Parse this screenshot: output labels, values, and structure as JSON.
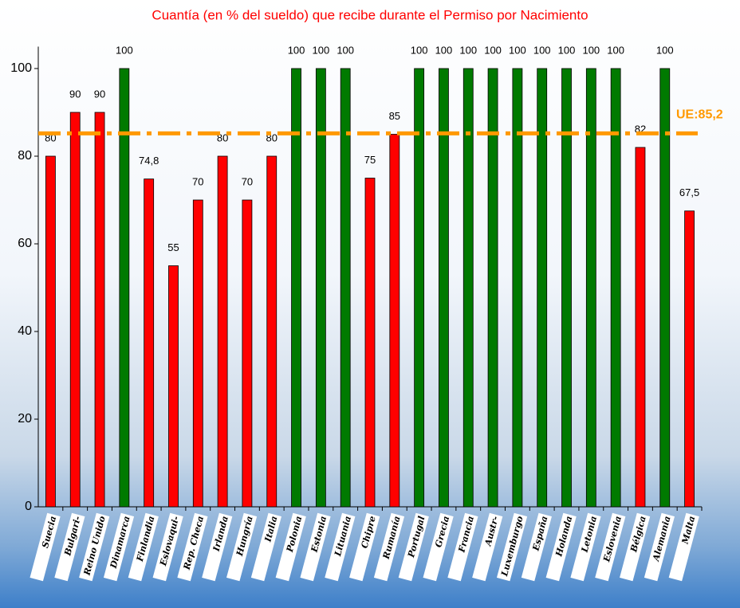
{
  "chart_data": {
    "type": "bar",
    "title": "Cuantía (en % del sueldo) que recibe durante el Permiso por Nacimiento",
    "categories": [
      "Suecia",
      "Bulgari-",
      "Reino Unido",
      "Dinamarca",
      "Finlandia",
      "Eslovaqui-",
      "Rep. Checa",
      "Irlanda",
      "Hungría",
      "Italia",
      "Polonia",
      "Estonia",
      "Lituania",
      "Chipre",
      "Rumanía",
      "Portugal",
      "Grecia",
      "Francia",
      "Austr-",
      "Luxemburgo",
      "España",
      "Holanda",
      "Letonia",
      "Eslovenia",
      "Bélgica",
      "Alemania",
      "Malta"
    ],
    "values": [
      80,
      90,
      90,
      100,
      74.8,
      55,
      70,
      80,
      70,
      80,
      100,
      100,
      100,
      75,
      85,
      100,
      100,
      100,
      100,
      100,
      100,
      100,
      100,
      100,
      82,
      100,
      67.5
    ],
    "value_labels": [
      "80",
      "90",
      "90",
      "100",
      "74,8",
      "55",
      "70",
      "80",
      "70",
      "80",
      "100",
      "100",
      "100",
      "75",
      "85",
      "100",
      "100",
      "100",
      "100",
      "100",
      "100",
      "100",
      "100",
      "100",
      "82",
      "100",
      "67,5"
    ],
    "colors": [
      "#ff0000",
      "#ff0000",
      "#ff0000",
      "#007a00",
      "#ff0000",
      "#ff0000",
      "#ff0000",
      "#ff0000",
      "#ff0000",
      "#ff0000",
      "#007a00",
      "#007a00",
      "#007a00",
      "#ff0000",
      "#ff0000",
      "#007a00",
      "#007a00",
      "#007a00",
      "#007a00",
      "#007a00",
      "#007a00",
      "#007a00",
      "#007a00",
      "#007a00",
      "#ff0000",
      "#007a00",
      "#ff0000"
    ],
    "ylim": [
      0,
      105
    ],
    "yticks": [
      0,
      20,
      40,
      60,
      80,
      100
    ],
    "reference_line": {
      "value": 85.2,
      "label": "UE:85,2",
      "color": "#ff9900"
    }
  }
}
